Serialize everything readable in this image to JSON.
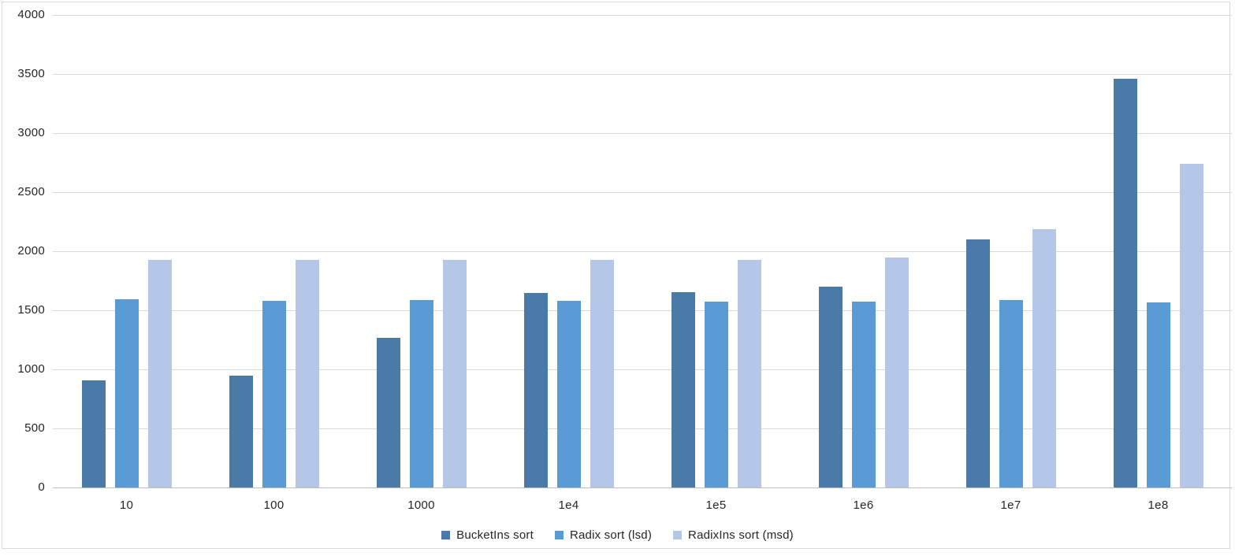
{
  "chart_data": {
    "type": "bar",
    "title": "",
    "xlabel": "",
    "ylabel": "",
    "categories": [
      "10",
      "100",
      "1000",
      "1e4",
      "1e5",
      "1e6",
      "1e7",
      "1e8"
    ],
    "series": [
      {
        "name": "BucketIns sort",
        "color": "#4A7BA8",
        "values": [
          905,
          945,
          1265,
          1645,
          1655,
          1700,
          2100,
          3460
        ]
      },
      {
        "name": "Radix sort (lsd)",
        "color": "#5B9BD5",
        "values": [
          1595,
          1580,
          1585,
          1580,
          1575,
          1575,
          1585,
          1570
        ]
      },
      {
        "name": "RadixIns sort (msd)",
        "color": "#B4C7E7",
        "values": [
          1930,
          1930,
          1925,
          1930,
          1930,
          1950,
          2185,
          2740
        ]
      }
    ],
    "ylim": [
      0,
      4000
    ],
    "ytick_step": 500,
    "yticks": [
      "0",
      "500",
      "1000",
      "1500",
      "2000",
      "2500",
      "3000",
      "3500",
      "4000"
    ],
    "grid": true,
    "legend_position": "bottom-center",
    "colors": {
      "gridline": "#D9D9D9",
      "axis_line": "#BFBFBF",
      "text": "#262626",
      "background": "#FFFFFF",
      "frame_border": "#D9D9D9"
    }
  }
}
